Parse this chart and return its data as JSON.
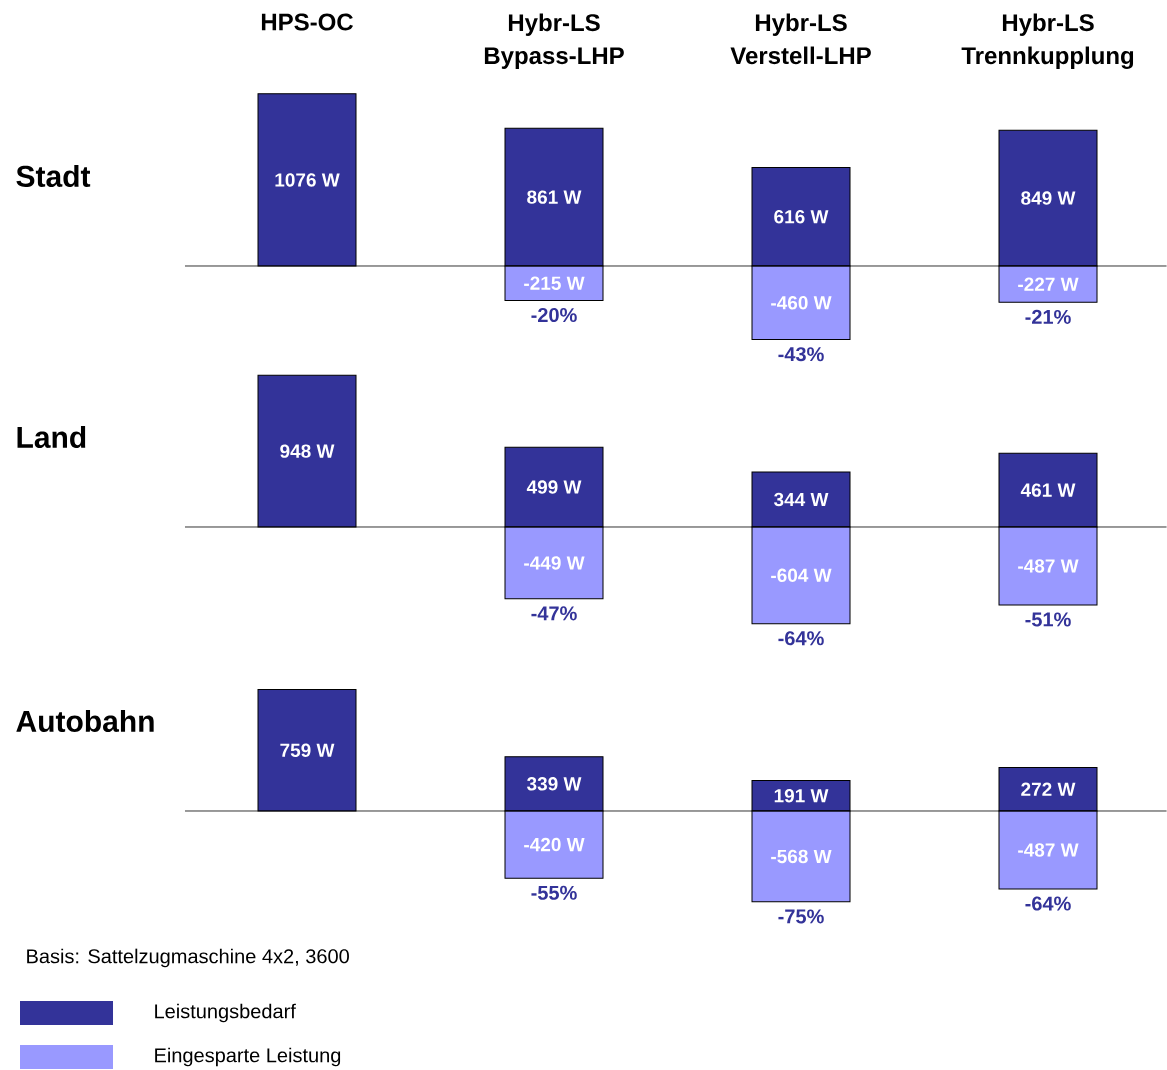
{
  "chart_data": [
    {
      "type": "bar",
      "title": "Stadt",
      "stacked": true,
      "tick_labels": "x",
      "categories": [
        "HPS-OC",
        "Hybr-LS Bypass-LHP",
        "Hybr-LS Verstell-LHP",
        "Hybr-LS Trennkupplung"
      ],
      "series": [
        {
          "color": "#333399",
          "values": [
            1076,
            861,
            616,
            849
          ],
          "value_labels": [
            "1076 W",
            "861 W",
            "616 W",
            "849 W"
          ]
        },
        {
          "color": "#9999ff",
          "values": [
            null,
            -215,
            -460,
            -227
          ],
          "value_labels": [
            null,
            "-215 W",
            "-460 W",
            "-227 W"
          ]
        }
      ],
      "annotations": [
        {
          "text": "-20%",
          "x": "Hybr-LS Bypass-LHP",
          "y": -215
        },
        {
          "text": "-43%",
          "x": "Hybr-LS Verstell-LHP",
          "y": -460
        },
        {
          "text": "-21%",
          "x": "Hybr-LS Trennkupplung",
          "y": -227
        }
      ]
    },
    {
      "type": "bar",
      "title": "Land",
      "stacked": true,
      "tick_labels": false,
      "categories": [
        "HPS-OC",
        "Hybr-LS Bypass-LHP",
        "Hybr-LS Verstell-LHP",
        "Hybr-LS Trennkupplung"
      ],
      "series": [
        {
          "color": "#333399",
          "values": [
            948,
            499,
            344,
            461
          ],
          "value_labels": [
            "948 W",
            "499 W",
            "344 W",
            "461 W"
          ]
        },
        {
          "color": "#9999ff",
          "values": [
            null,
            -449,
            -604,
            -487
          ],
          "value_labels": [
            null,
            "-449 W",
            "-604 W",
            "-487 W"
          ]
        }
      ],
      "annotations": [
        {
          "text": "-47%",
          "x": "Hybr-LS Bypass-LHP",
          "y": -449
        },
        {
          "text": "-64%",
          "x": "Hybr-LS Verstell-LHP",
          "y": -604
        },
        {
          "text": "-51%",
          "x": "Hybr-LS Trennkupplung",
          "y": -487
        }
      ]
    },
    {
      "type": "bar",
      "title": "Autobahn",
      "stacked": true,
      "tick_labels": false,
      "legend": "bottom left",
      "categories": [
        "HPS-OC",
        "Hybr-LS Bypass-LHP",
        "Hybr-LS Verstell-LHP",
        "Hybr-LS Trennkupplung"
      ],
      "series": [
        {
          "name": "Leistungsbedarf",
          "color": "#333399",
          "values": [
            759,
            339,
            191,
            272
          ],
          "value_labels": [
            "759 W",
            "339 W",
            "191 W",
            "272 W"
          ]
        },
        {
          "name": "Eingesparte Leistung",
          "color": "#9999ff",
          "values": [
            null,
            -420,
            -568,
            -487
          ],
          "value_labels": [
            null,
            "-420 W",
            "-568 W",
            "-487 W"
          ]
        }
      ],
      "annotations": [
        {
          "text": "-55%",
          "x": "Hybr-LS Bypass-LHP",
          "y": -420
        },
        {
          "text": "-75%",
          "x": "Hybr-LS Verstell-LHP",
          "y": -568
        },
        {
          "text": "-64%",
          "x": "Hybr-LS Trennkupplung",
          "y": -487
        },
        "Basis: Sattelzugmaschine 4x2, 3600"
      ]
    }
  ]
}
